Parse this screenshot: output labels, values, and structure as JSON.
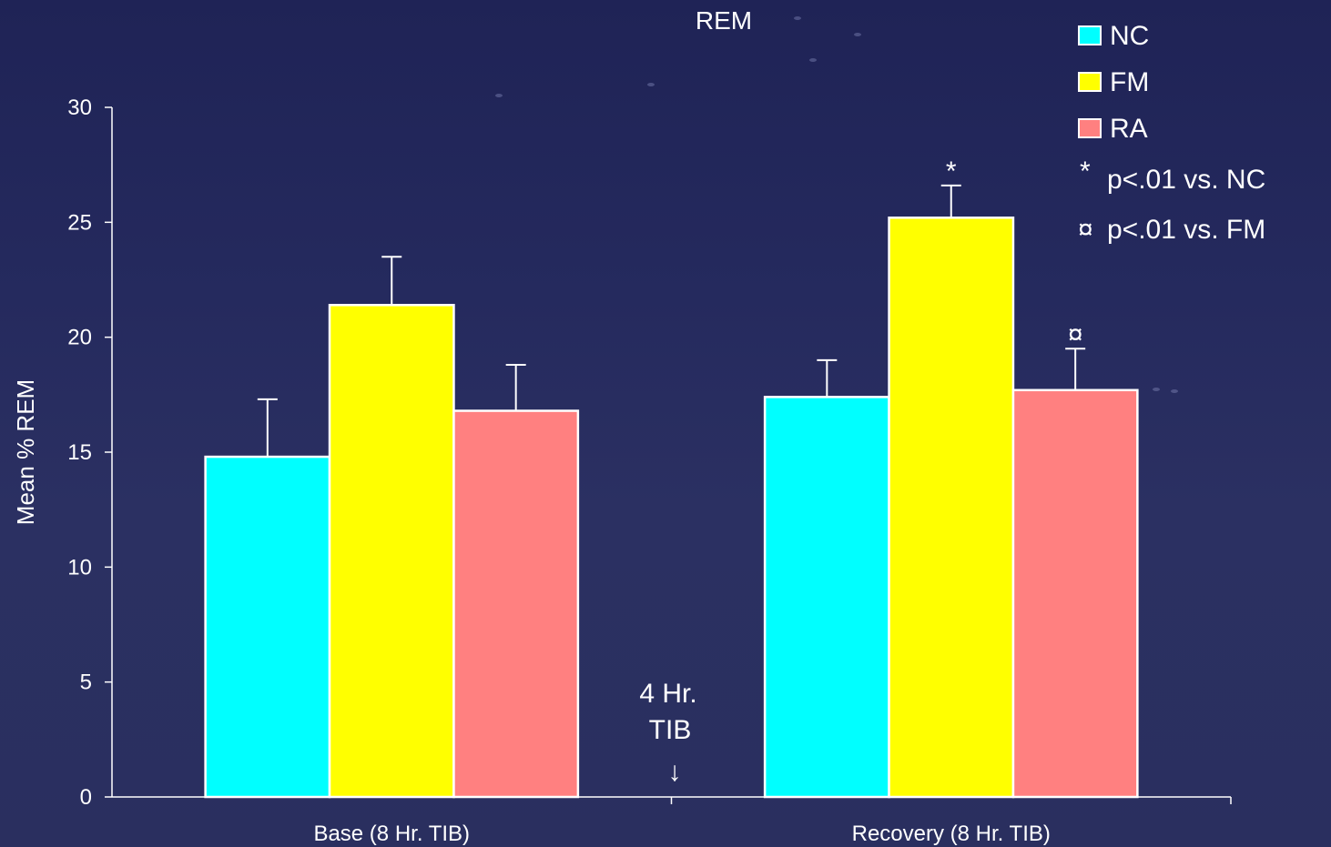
{
  "chart_data": {
    "type": "bar",
    "title": "REM",
    "xlabel": "",
    "ylabel": "Mean % REM",
    "ylim": [
      0,
      30
    ],
    "yticks": [
      0,
      5,
      10,
      15,
      20,
      25,
      30
    ],
    "categories": [
      "Base (8 Hr. TIB)",
      "Recovery (8 Hr. TIB)"
    ],
    "series": [
      {
        "name": "NC",
        "color": "#00ffff",
        "values": [
          14.8,
          17.4
        ],
        "errors": [
          2.5,
          1.6
        ],
        "markers": [
          "",
          ""
        ]
      },
      {
        "name": "FM",
        "color": "#ffff00",
        "values": [
          21.4,
          25.2
        ],
        "errors": [
          2.1,
          1.4
        ],
        "markers": [
          "",
          "*"
        ]
      },
      {
        "name": "RA",
        "color": "#ff8080",
        "values": [
          16.8,
          17.7
        ],
        "errors": [
          2.0,
          1.8
        ],
        "markers": [
          "",
          "¤"
        ]
      }
    ],
    "annotation": {
      "line1": "4 Hr.",
      "line2": "TIB",
      "arrow": "↓"
    },
    "legend_position": "top-right",
    "notes": [
      {
        "symbol": "*",
        "text": "p<.01 vs. NC"
      },
      {
        "symbol": "¤",
        "text": "p<.01 vs. FM"
      }
    ],
    "grid": false
  }
}
